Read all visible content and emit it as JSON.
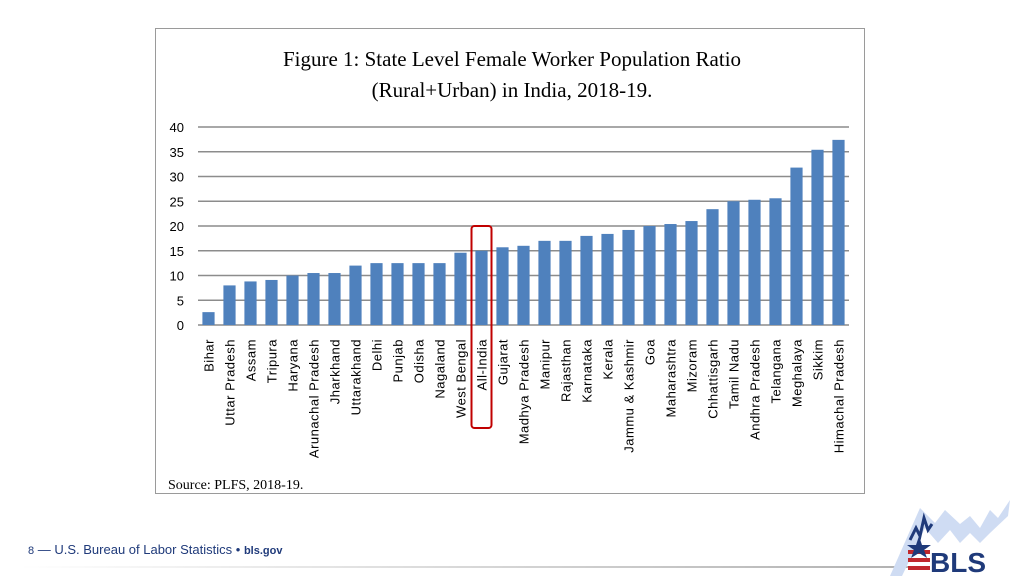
{
  "chart_data": {
    "type": "bar",
    "title": [
      "Figure 1: State Level Female Worker Population Ratio",
      "(Rural+Urban) in India, 2018-19."
    ],
    "categories": [
      "Bihar",
      "Uttar Pradesh",
      "Assam",
      "Tripura",
      "Haryana",
      "Arunachal Pradesh",
      "Jharkhand",
      "Uttarakhand",
      "Delhi",
      "Punjab",
      "Odisha",
      "Nagaland",
      "West Bengal",
      "All-India",
      "Gujarat",
      "Madhya Pradesh",
      "Manipur",
      "Rajasthan",
      "Karnataka",
      "Kerala",
      "Jammu & Kashmir",
      "Goa",
      "Maharashtra",
      "Mizoram",
      "Chhattisgarh",
      "Tamil Nadu",
      "Andhra Pradesh",
      "Telangana",
      "Meghalaya",
      "Sikkim",
      "Himachal Pradesh"
    ],
    "values": [
      2.6,
      8.0,
      8.8,
      9.1,
      10.0,
      10.5,
      10.5,
      12.0,
      12.5,
      12.5,
      12.5,
      12.5,
      14.6,
      15.0,
      15.7,
      16.0,
      17.0,
      17.0,
      18.0,
      18.4,
      19.2,
      20.0,
      20.4,
      21.0,
      23.4,
      25.0,
      25.3,
      25.6,
      31.8,
      35.4,
      37.4
    ],
    "yticks": [
      "0",
      "5",
      "10",
      "15",
      "20",
      "25",
      "30",
      "35",
      "40"
    ],
    "ylim": [
      0,
      40
    ],
    "grid": true,
    "highlighted_category": "All-India",
    "bar_color": "#4f81bd",
    "highlight_color": "#c00000",
    "source": "Source: PLFS, 2018-19."
  },
  "footer": {
    "page_number": "8",
    "org": "— U.S. Bureau of Labor Statistics",
    "separator": "•",
    "site": "bls.gov"
  },
  "logo": {
    "text": "BLS"
  }
}
